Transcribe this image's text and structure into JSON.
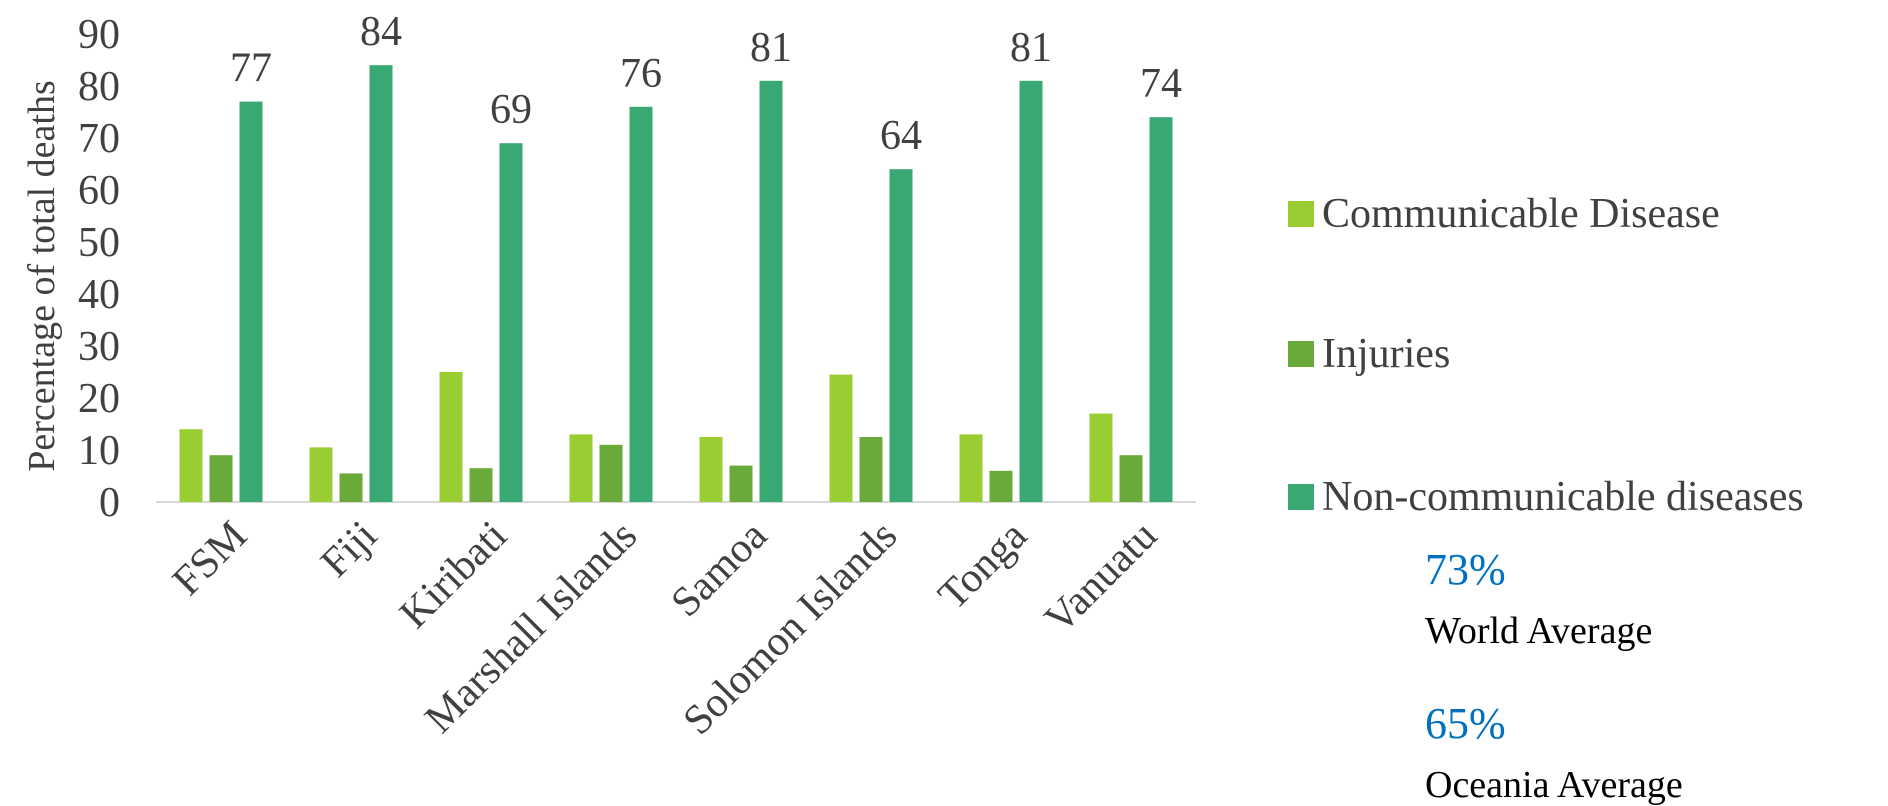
{
  "chart_data": {
    "type": "bar",
    "ylabel": "Percentage of total deaths",
    "ylim": [
      0,
      90
    ],
    "yticks": [
      0,
      10,
      20,
      30,
      40,
      50,
      60,
      70,
      80,
      90
    ],
    "categories": [
      "FSM",
      "Fiji",
      "Kiribati",
      "Marshall Islands",
      "Samoa",
      "Solomon Islands",
      "Tonga",
      "Vanuatu"
    ],
    "series": [
      {
        "name": "Communicable Disease",
        "color": "#9acd32",
        "values": [
          14,
          10.5,
          25,
          13,
          12.5,
          24.5,
          13,
          17
        ],
        "show_labels": false
      },
      {
        "name": "Injuries",
        "color": "#6aaa3a",
        "values": [
          9,
          5.5,
          6.5,
          11,
          7,
          12.5,
          6,
          9
        ],
        "show_labels": false
      },
      {
        "name": "Non-communicable diseases",
        "color": "#3aa872",
        "values": [
          77,
          84,
          69,
          76,
          81,
          64,
          81,
          74
        ],
        "show_labels": true
      }
    ],
    "legend_position": "right",
    "grid": false
  },
  "averages": [
    {
      "value": "73%",
      "label": "World Average"
    },
    {
      "value": "65%",
      "label": "Oceania Average"
    }
  ]
}
